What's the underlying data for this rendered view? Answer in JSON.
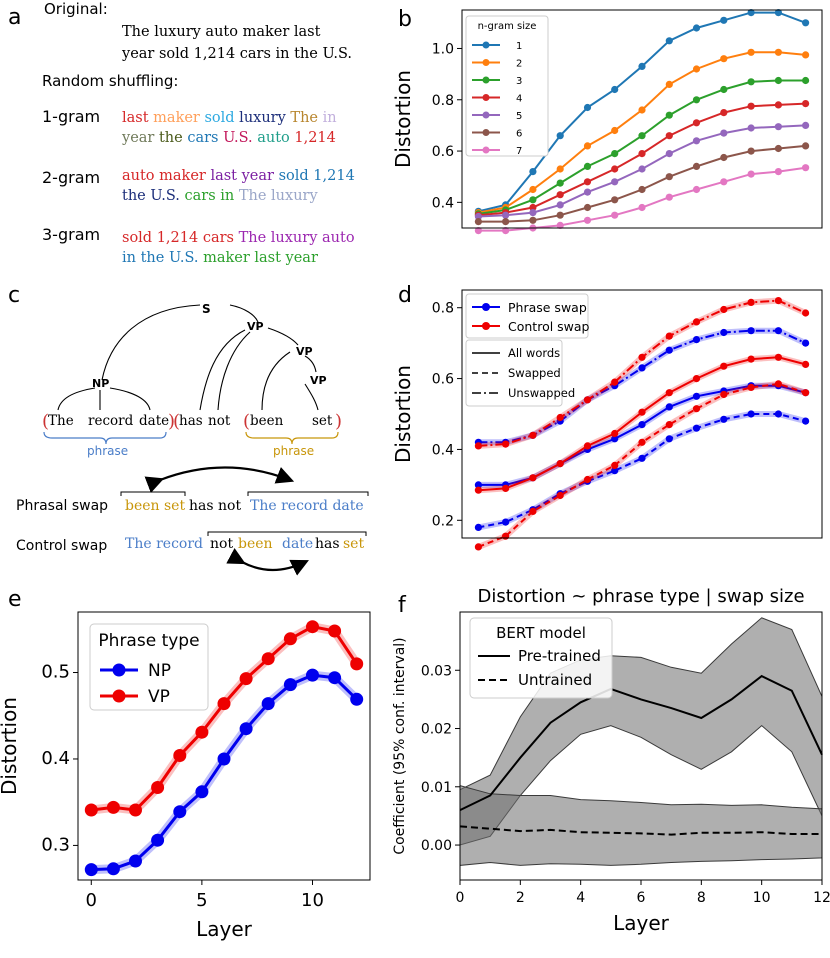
{
  "panel_letters": {
    "a": "a",
    "b": "b",
    "c": "c",
    "d": "d",
    "e": "e",
    "f": "f"
  },
  "panel_a": {
    "original_label": "Original:",
    "original_lines": [
      "The luxury auto maker last",
      "year sold 1,214 cars in the U.S."
    ],
    "shuffle_label": "Random shuffling:",
    "word_colors": {
      "The": "#9c7a3c",
      "luxury": "#1f3a93",
      "auto": "#1f9e8a",
      "maker": "#f0a060",
      "last": "#cc2222",
      "year": "#6b6b5a",
      "sold": "#27a9e1",
      "1,214": "#d12f2f",
      "cars": "#2a2a2a",
      "in": "#b9a8d9",
      "the": "#2a6b2a",
      "U.S.": "#c2185b"
    },
    "rows": [
      {
        "label": "1-gram",
        "lines": [
          [
            {
              "t": "last",
              "c": "#d62728"
            },
            {
              "t": "maker",
              "c": "#ff9f5a"
            },
            {
              "t": "sold",
              "c": "#2ca9e1"
            },
            {
              "t": "luxury",
              "c": "#1c2e7a"
            },
            {
              "t": "The",
              "c": "#b8862e"
            },
            {
              "t": "in",
              "c": "#c2b0dd"
            }
          ],
          [
            {
              "t": "year",
              "c": "#707a5a"
            },
            {
              "t": "the",
              "c": "#4a5a1a"
            },
            {
              "t": "cars",
              "c": "#1f77b4"
            },
            {
              "t": "U.S.",
              "c": "#c2185b"
            },
            {
              "t": "auto",
              "c": "#1f9e8a"
            },
            {
              "t": "1,214",
              "c": "#d62728"
            }
          ]
        ]
      },
      {
        "label": "2-gram",
        "lines": [
          [
            {
              "t": "auto maker",
              "c": "#d62728"
            },
            {
              "t": "last year",
              "c": "#7b1fa2"
            },
            {
              "t": "sold 1,214",
              "c": "#1f77b4"
            }
          ],
          [
            {
              "t": "the U.S.",
              "c": "#1c2e7a"
            },
            {
              "t": "cars in",
              "c": "#2ca02c"
            },
            {
              "t": "The luxury",
              "c": "#9aa6c8"
            }
          ]
        ]
      },
      {
        "label": "3-gram",
        "lines": [
          [
            {
              "t": "sold 1,214 cars",
              "c": "#d62728"
            },
            {
              "t": "The luxury auto",
              "c": "#9c27b0"
            }
          ],
          [
            {
              "t": "in the U.S.",
              "c": "#1f77b4"
            },
            {
              "t": "maker last year",
              "c": "#2ca02c"
            }
          ]
        ]
      }
    ]
  },
  "panel_c": {
    "tree_labels": {
      "S": "S",
      "VP1": "VP",
      "VP2": "VP",
      "VP3": "VP",
      "NP": "NP"
    },
    "words": [
      "The",
      "record",
      "date",
      "has",
      "not",
      "been",
      "set"
    ],
    "phrase1": "phrase",
    "phrase2": "phrase",
    "phrasal_swap_label": "Phrasal swap",
    "phrasal_swap_parts": [
      "been set",
      "has not",
      "The record date"
    ],
    "control_swap_label": "Control swap",
    "control_swap_parts": [
      "The record",
      "not",
      "been",
      "date",
      "has",
      "set"
    ],
    "colors": {
      "blue": "#4a7dc8",
      "gold": "#c8960a",
      "red": "#cc3333"
    }
  },
  "chart_data": [
    {
      "id": "b",
      "type": "line",
      "xlabel": "",
      "ylabel": "Distortion",
      "ylim": [
        0.3,
        1.15
      ],
      "yticks": [
        0.4,
        0.6,
        0.8,
        1.0
      ],
      "ytick_labels": [
        "0.4",
        "0.6",
        "0.8",
        "1.0"
      ],
      "x": [
        0,
        1,
        2,
        3,
        4,
        5,
        6,
        7,
        8,
        9,
        10,
        11,
        12
      ],
      "legend_title": "n-gram size",
      "series": [
        {
          "name": "1",
          "color": "#1f77b4",
          "values": [
            0.365,
            0.39,
            0.52,
            0.66,
            0.77,
            0.84,
            0.93,
            1.03,
            1.08,
            1.11,
            1.14,
            1.14,
            1.1
          ]
        },
        {
          "name": "2",
          "color": "#ff7f0e",
          "values": [
            0.36,
            0.38,
            0.45,
            0.53,
            0.62,
            0.68,
            0.76,
            0.86,
            0.92,
            0.96,
            0.985,
            0.985,
            0.975
          ]
        },
        {
          "name": "3",
          "color": "#2ca02c",
          "values": [
            0.355,
            0.37,
            0.41,
            0.475,
            0.54,
            0.59,
            0.66,
            0.74,
            0.8,
            0.84,
            0.87,
            0.875,
            0.875
          ]
        },
        {
          "name": "4",
          "color": "#d62728",
          "values": [
            0.35,
            0.36,
            0.38,
            0.43,
            0.48,
            0.53,
            0.59,
            0.66,
            0.71,
            0.75,
            0.775,
            0.78,
            0.785
          ]
        },
        {
          "name": "5",
          "color": "#9467bd",
          "values": [
            0.345,
            0.35,
            0.36,
            0.39,
            0.44,
            0.48,
            0.53,
            0.59,
            0.64,
            0.67,
            0.69,
            0.695,
            0.7
          ]
        },
        {
          "name": "6",
          "color": "#8c564b",
          "values": [
            0.325,
            0.325,
            0.33,
            0.35,
            0.38,
            0.41,
            0.45,
            0.5,
            0.54,
            0.575,
            0.6,
            0.61,
            0.62
          ]
        },
        {
          "name": "7",
          "color": "#e377c2",
          "values": [
            0.29,
            0.29,
            0.3,
            0.31,
            0.33,
            0.35,
            0.38,
            0.42,
            0.45,
            0.48,
            0.51,
            0.52,
            0.535
          ]
        }
      ]
    },
    {
      "id": "d",
      "type": "line",
      "xlabel": "",
      "ylabel": "Distortion",
      "ylim": [
        0.15,
        0.85
      ],
      "yticks": [
        0.2,
        0.4,
        0.6,
        0.8
      ],
      "ytick_labels": [
        "0.2",
        "0.4",
        "0.6",
        "0.8"
      ],
      "x": [
        0,
        1,
        2,
        3,
        4,
        5,
        6,
        7,
        8,
        9,
        10,
        11,
        12
      ],
      "legend": [
        "Phrase swap",
        "Control swap"
      ],
      "style_legend": [
        "All words",
        "Swapped",
        "Unswapped"
      ],
      "series": [
        {
          "name": "Phrase swap - All words",
          "color": "#0000ee",
          "dash": "solid",
          "values": [
            0.3,
            0.3,
            0.32,
            0.36,
            0.4,
            0.43,
            0.47,
            0.52,
            0.55,
            0.565,
            0.58,
            0.58,
            0.56
          ]
        },
        {
          "name": "Phrase swap - Swapped",
          "color": "#0000ee",
          "dash": "dashed",
          "values": [
            0.18,
            0.195,
            0.23,
            0.275,
            0.31,
            0.34,
            0.375,
            0.43,
            0.46,
            0.485,
            0.5,
            0.5,
            0.48
          ]
        },
        {
          "name": "Phrase swap - Unswapped",
          "color": "#0000ee",
          "dash": "dashdot",
          "values": [
            0.42,
            0.42,
            0.44,
            0.48,
            0.54,
            0.58,
            0.63,
            0.68,
            0.71,
            0.73,
            0.735,
            0.735,
            0.7
          ]
        },
        {
          "name": "Control swap - All words",
          "color": "#ee0000",
          "dash": "solid",
          "values": [
            0.285,
            0.29,
            0.32,
            0.36,
            0.41,
            0.445,
            0.505,
            0.56,
            0.6,
            0.635,
            0.655,
            0.66,
            0.64
          ]
        },
        {
          "name": "Control swap - Swapped",
          "color": "#ee0000",
          "dash": "dashed",
          "values": [
            0.125,
            0.155,
            0.225,
            0.27,
            0.315,
            0.355,
            0.42,
            0.47,
            0.515,
            0.555,
            0.575,
            0.585,
            0.56
          ]
        },
        {
          "name": "Control swap - Unswapped",
          "color": "#ee0000",
          "dash": "dashdot",
          "values": [
            0.41,
            0.415,
            0.44,
            0.49,
            0.54,
            0.59,
            0.66,
            0.72,
            0.76,
            0.795,
            0.815,
            0.82,
            0.785
          ]
        }
      ]
    },
    {
      "id": "e",
      "type": "line",
      "xlabel": "Layer",
      "ylabel": "Distortion",
      "ylim": [
        0.26,
        0.57
      ],
      "xlim": [
        -0.6,
        12.6
      ],
      "yticks": [
        0.3,
        0.4,
        0.5
      ],
      "ytick_labels": [
        "0.3",
        "0.4",
        "0.5"
      ],
      "xticks": [
        0,
        5,
        10
      ],
      "xtick_labels": [
        "0",
        "5",
        "10"
      ],
      "x": [
        0,
        1,
        2,
        3,
        4,
        5,
        6,
        7,
        8,
        9,
        10,
        11,
        12
      ],
      "legend_title": "Phrase type",
      "series": [
        {
          "name": "NP",
          "color": "#0000ee",
          "values": [
            0.272,
            0.273,
            0.282,
            0.306,
            0.339,
            0.362,
            0.4,
            0.435,
            0.464,
            0.486,
            0.497,
            0.494,
            0.469
          ]
        },
        {
          "name": "VP",
          "color": "#ee0000",
          "values": [
            0.341,
            0.344,
            0.341,
            0.367,
            0.404,
            0.431,
            0.464,
            0.493,
            0.516,
            0.539,
            0.553,
            0.548,
            0.51
          ]
        }
      ]
    },
    {
      "id": "f",
      "type": "area",
      "title": "Distortion ~ phrase type | swap size",
      "xlabel": "Layer",
      "ylabel": "Coefficient (95% conf. interval)",
      "ylim": [
        -0.006,
        0.04
      ],
      "xlim": [
        0,
        12
      ],
      "yticks": [
        0.0,
        0.01,
        0.02,
        0.03
      ],
      "ytick_labels": [
        "0.00",
        "0.01",
        "0.02",
        "0.03"
      ],
      "xticks": [
        0,
        2,
        4,
        6,
        8,
        10,
        12
      ],
      "xtick_labels": [
        "0",
        "2",
        "4",
        "6",
        "8",
        "10",
        "12"
      ],
      "x": [
        0,
        1,
        2,
        3,
        4,
        5,
        6,
        7,
        8,
        9,
        10,
        11,
        12
      ],
      "legend_title": "BERT model",
      "series": [
        {
          "name": "Pre-trained",
          "dash": "solid",
          "values": [
            0.006,
            0.0085,
            0.015,
            0.021,
            0.0245,
            0.0268,
            0.025,
            0.0235,
            0.0218,
            0.025,
            0.029,
            0.0265,
            0.0155
          ],
          "lower": [
            0.0,
            0.0015,
            0.0085,
            0.0145,
            0.019,
            0.0205,
            0.0185,
            0.0155,
            0.013,
            0.016,
            0.0205,
            0.016,
            0.005
          ],
          "upper": [
            0.0095,
            0.012,
            0.022,
            0.0295,
            0.0318,
            0.0325,
            0.0322,
            0.0305,
            0.0295,
            0.0345,
            0.039,
            0.037,
            0.0255
          ]
        },
        {
          "name": "Untrained",
          "dash": "dashed",
          "values": [
            0.0032,
            0.0028,
            0.0024,
            0.0026,
            0.0022,
            0.0021,
            0.002,
            0.0018,
            0.0021,
            0.0021,
            0.0022,
            0.0019,
            0.0019
          ],
          "lower": [
            -0.0035,
            -0.003,
            -0.0035,
            -0.0032,
            -0.0033,
            -0.0035,
            -0.0033,
            -0.003,
            -0.0028,
            -0.0027,
            -0.0025,
            -0.0024,
            -0.0022
          ],
          "upper": [
            0.0102,
            0.0088,
            0.0085,
            0.0085,
            0.0078,
            0.0076,
            0.0073,
            0.0069,
            0.007,
            0.0068,
            0.0069,
            0.0065,
            0.0062
          ]
        }
      ]
    }
  ]
}
